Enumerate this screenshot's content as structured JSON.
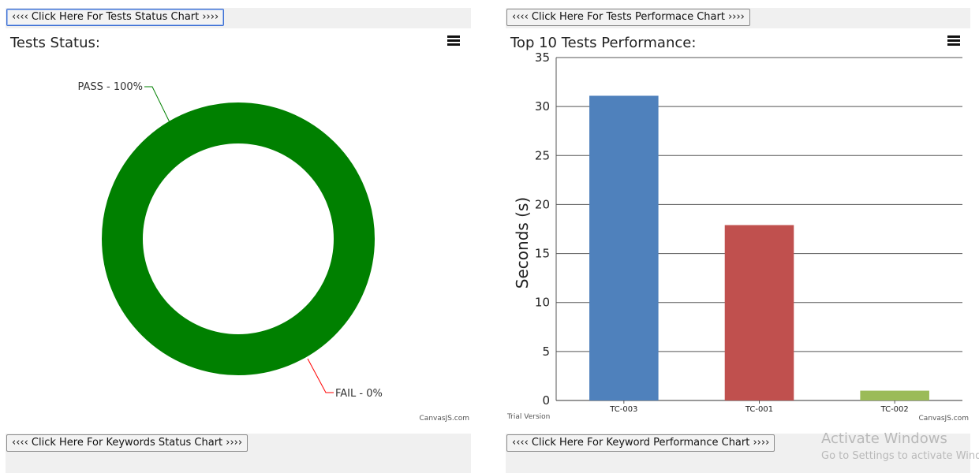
{
  "left_panel": {
    "button_label": "‹‹‹‹ Click Here For Tests Status Chart ››››",
    "title": "Tests Status:",
    "menu_icon": "hamburger-menu-icon",
    "credit": "CanvasJS.com",
    "bottom_button_label": "‹‹‹‹ Click Here For Keywords Status Chart ››››"
  },
  "right_panel": {
    "button_label": "‹‹‹‹ Click Here For Tests Performace Chart ››››",
    "title": "Top 10 Tests Performance:",
    "menu_icon": "hamburger-menu-icon",
    "credit": "CanvasJS.com",
    "trial": "Trial Version",
    "bottom_button_label": "‹‹‹‹ Click Here For Keyword Performance Chart ››››"
  },
  "watermark": {
    "line1": "Activate Windows",
    "line2": "Go to Settings to activate Windows."
  },
  "chart_data": [
    {
      "type": "pie",
      "title": "Tests Status:",
      "slices": [
        {
          "label": "PASS - 100%",
          "value": 100,
          "color": "#008000"
        },
        {
          "label": "FAIL - 0%",
          "value": 0,
          "color": "#ff0000"
        }
      ]
    },
    {
      "type": "bar",
      "title": "Top 10 Tests Performance:",
      "ylabel": "Seconds (s)",
      "xlabel": "",
      "ylim": [
        0,
        35
      ],
      "yticks": [
        0,
        5,
        10,
        15,
        20,
        25,
        30,
        35
      ],
      "grid": true,
      "categories": [
        "TC-003",
        "TC-001",
        "TC-002"
      ],
      "values": [
        31.1,
        17.9,
        1.0
      ],
      "colors": [
        "#4f81bc",
        "#c0504e",
        "#9bbb58"
      ]
    }
  ]
}
